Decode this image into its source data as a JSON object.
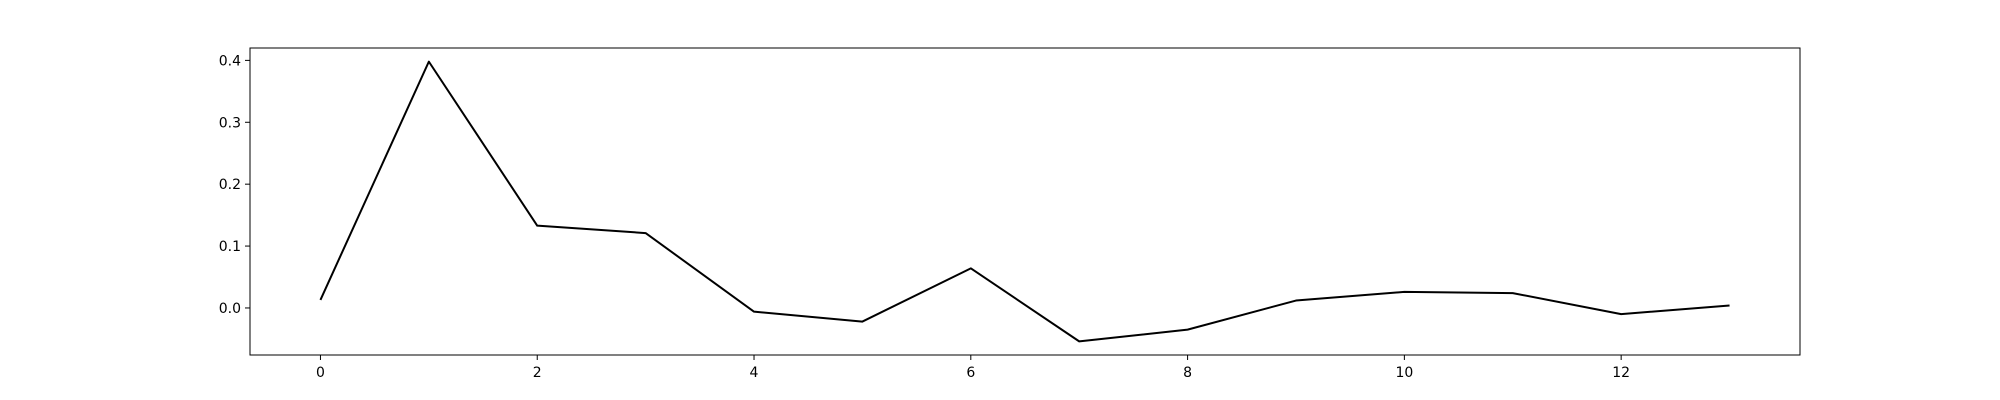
{
  "chart_data": {
    "type": "line",
    "title": "",
    "xlabel": "",
    "ylabel": "",
    "x": [
      0,
      1,
      2,
      3,
      4,
      5,
      6,
      7,
      8,
      9,
      10,
      11,
      12,
      13
    ],
    "series": [
      {
        "values": [
          0.013,
          0.398,
          0.133,
          0.121,
          -0.006,
          -0.022,
          0.064,
          -0.054,
          -0.035,
          0.012,
          0.026,
          0.024,
          -0.01,
          0.004
        ],
        "color": "#000000"
      }
    ],
    "xlim": [
      -0.65,
      13.65
    ],
    "ylim": [
      -0.076,
      0.42
    ],
    "xticks": [
      0,
      2,
      4,
      6,
      8,
      10,
      12
    ],
    "xtick_labels": [
      "0",
      "2",
      "4",
      "6",
      "8",
      "10",
      "12"
    ],
    "yticks": [
      0.0,
      0.1,
      0.2,
      0.3,
      0.4
    ],
    "ytick_labels": [
      "0.0",
      "0.1",
      "0.2",
      "0.3",
      "0.4"
    ],
    "grid": false,
    "legend": "none"
  }
}
